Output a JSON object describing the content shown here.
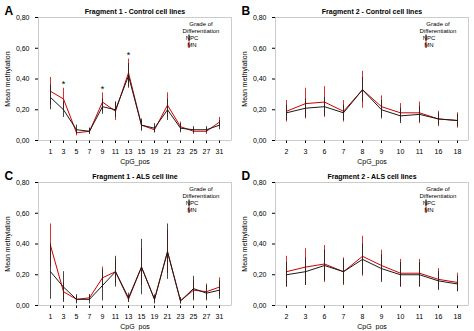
{
  "chart_data": [
    {
      "type": "line",
      "title": "Fragment 1 - Control cell lines",
      "panel_label": "A",
      "x_label": "CpG_pos",
      "y_label": "Mean methylation",
      "categories": [
        "1",
        "3",
        "5",
        "7",
        "9",
        "11",
        "13",
        "15",
        "19",
        "21",
        "23",
        "25",
        "27",
        "31"
      ],
      "series": [
        {
          "name": "NPC",
          "color": "#1a1a1a",
          "values": [
            0.28,
            0.2,
            0.07,
            0.06,
            0.22,
            0.2,
            0.42,
            0.1,
            0.08,
            0.2,
            0.08,
            0.07,
            0.07,
            0.1
          ],
          "errors": [
            0.08,
            0.05,
            0.03,
            0.02,
            0.05,
            0.05,
            0.08,
            0.04,
            0.03,
            0.07,
            0.03,
            0.02,
            0.02,
            0.03
          ]
        },
        {
          "name": "MN",
          "color": "#cc0000",
          "values": [
            0.32,
            0.27,
            0.05,
            0.06,
            0.25,
            0.19,
            0.44,
            0.1,
            0.07,
            0.23,
            0.09,
            0.06,
            0.06,
            0.12
          ],
          "errors": [
            0.09,
            0.07,
            0.02,
            0.02,
            0.06,
            0.06,
            0.09,
            0.03,
            0.02,
            0.08,
            0.03,
            0.02,
            0.02,
            0.03
          ]
        }
      ],
      "annotations": [
        {
          "text": "*",
          "x": "3"
        },
        {
          "text": "*",
          "x": "9"
        },
        {
          "text": "*",
          "x": "13"
        }
      ],
      "ylim": [
        0.0,
        0.8
      ],
      "yticks": [
        {
          "value": 0.0,
          "label": "0,00"
        },
        {
          "value": 0.2,
          "label": "0,20"
        },
        {
          "value": 0.4,
          "label": "0,40"
        },
        {
          "value": 0.6,
          "label": "0,60"
        },
        {
          "value": 0.8,
          "label": "0,80"
        }
      ],
      "grid": false,
      "legend": "upper right",
      "legend_title": "Grade of\nDifferentiation"
    },
    {
      "type": "line",
      "title": "Fragment 2 - Control cell lines",
      "panel_label": "B",
      "x_label": "CpG_pos",
      "y_label": "Mean methylation",
      "categories": [
        "2",
        "3",
        "6",
        "7",
        "8",
        "9",
        "10",
        "11",
        "16",
        "18"
      ],
      "series": [
        {
          "name": "NPC",
          "color": "#1a1a1a",
          "values": [
            0.18,
            0.21,
            0.22,
            0.18,
            0.33,
            0.2,
            0.16,
            0.17,
            0.14,
            0.13
          ],
          "errors": [
            0.05,
            0.06,
            0.06,
            0.05,
            0.08,
            0.06,
            0.05,
            0.05,
            0.04,
            0.04
          ]
        },
        {
          "name": "MN",
          "color": "#cc0000",
          "values": [
            0.19,
            0.24,
            0.25,
            0.19,
            0.33,
            0.22,
            0.18,
            0.18,
            0.14,
            0.13
          ],
          "errors": [
            0.07,
            0.1,
            0.1,
            0.07,
            0.12,
            0.07,
            0.06,
            0.07,
            0.05,
            0.05
          ]
        }
      ],
      "ylim": [
        0.0,
        0.8
      ],
      "yticks": [
        {
          "value": 0.0,
          "label": "0,00"
        },
        {
          "value": 0.2,
          "label": "0,20"
        },
        {
          "value": 0.4,
          "label": "0,40"
        },
        {
          "value": 0.6,
          "label": "0,60"
        },
        {
          "value": 0.8,
          "label": "0,80"
        }
      ],
      "grid": false,
      "legend": "upper right",
      "legend_title": "Grade of\nDifferentiation"
    },
    {
      "type": "line",
      "title": "Fragment 1 - ALS cell line",
      "panel_label": "C",
      "x_label": "CpG_pos",
      "y_label": "Mean methylation",
      "categories": [
        "1",
        "3",
        "5",
        "7",
        "9",
        "11",
        "13",
        "15",
        "19",
        "21",
        "23",
        "25",
        "27",
        "31"
      ],
      "series": [
        {
          "name": "NPC",
          "color": "#1a1a1a",
          "values": [
            0.22,
            0.12,
            0.04,
            0.04,
            0.13,
            0.22,
            0.05,
            0.25,
            0.04,
            0.35,
            0.03,
            0.11,
            0.08,
            0.1
          ],
          "errors": [
            0.18,
            0.1,
            0.03,
            0.03,
            0.1,
            0.1,
            0.03,
            0.18,
            0.03,
            0.18,
            0.02,
            0.08,
            0.05,
            0.06
          ]
        },
        {
          "name": "MN",
          "color": "#cc0000",
          "values": [
            0.39,
            0.09,
            0.04,
            0.05,
            0.18,
            0.22,
            0.04,
            0.25,
            0.04,
            0.35,
            0.03,
            0.1,
            0.09,
            0.12
          ],
          "errors": [
            0.14,
            0.06,
            0.02,
            0.02,
            0.07,
            0.08,
            0.02,
            0.12,
            0.02,
            0.14,
            0.02,
            0.06,
            0.05,
            0.06
          ]
        }
      ],
      "ylim": [
        0.0,
        0.8
      ],
      "yticks": [
        {
          "value": 0.0,
          "label": "0,00"
        },
        {
          "value": 0.2,
          "label": "0,20"
        },
        {
          "value": 0.4,
          "label": "0,40"
        },
        {
          "value": 0.6,
          "label": "0,60"
        },
        {
          "value": 0.8,
          "label": "0,80"
        }
      ],
      "grid": false,
      "legend": "upper right",
      "legend_title": "Grade of\nDifferentiation"
    },
    {
      "type": "line",
      "title": "Fragment 2 - ALS cell lines",
      "panel_label": "D",
      "x_label": "CpG_pos",
      "y_label": "Mean methylation",
      "categories": [
        "2",
        "3",
        "6",
        "7",
        "8",
        "9",
        "10",
        "11",
        "16",
        "18"
      ],
      "series": [
        {
          "name": "NPC",
          "color": "#1a1a1a",
          "values": [
            0.2,
            0.22,
            0.26,
            0.22,
            0.3,
            0.24,
            0.2,
            0.2,
            0.16,
            0.14
          ],
          "errors": [
            0.08,
            0.09,
            0.1,
            0.08,
            0.1,
            0.09,
            0.08,
            0.08,
            0.06,
            0.05
          ]
        },
        {
          "name": "MN",
          "color": "#cc0000",
          "values": [
            0.22,
            0.25,
            0.27,
            0.22,
            0.32,
            0.26,
            0.21,
            0.21,
            0.17,
            0.15
          ],
          "errors": [
            0.1,
            0.12,
            0.12,
            0.09,
            0.13,
            0.1,
            0.09,
            0.09,
            0.07,
            0.06
          ]
        }
      ],
      "ylim": [
        0.0,
        0.8
      ],
      "yticks": [
        {
          "value": 0.0,
          "label": "0,00"
        },
        {
          "value": 0.2,
          "label": "0,20"
        },
        {
          "value": 0.4,
          "label": "0,40"
        },
        {
          "value": 0.6,
          "label": "0,60"
        },
        {
          "value": 0.8,
          "label": "0,80"
        }
      ],
      "grid": false,
      "legend": "upper right",
      "legend_title": "Grade of\nDifferentiation"
    }
  ]
}
